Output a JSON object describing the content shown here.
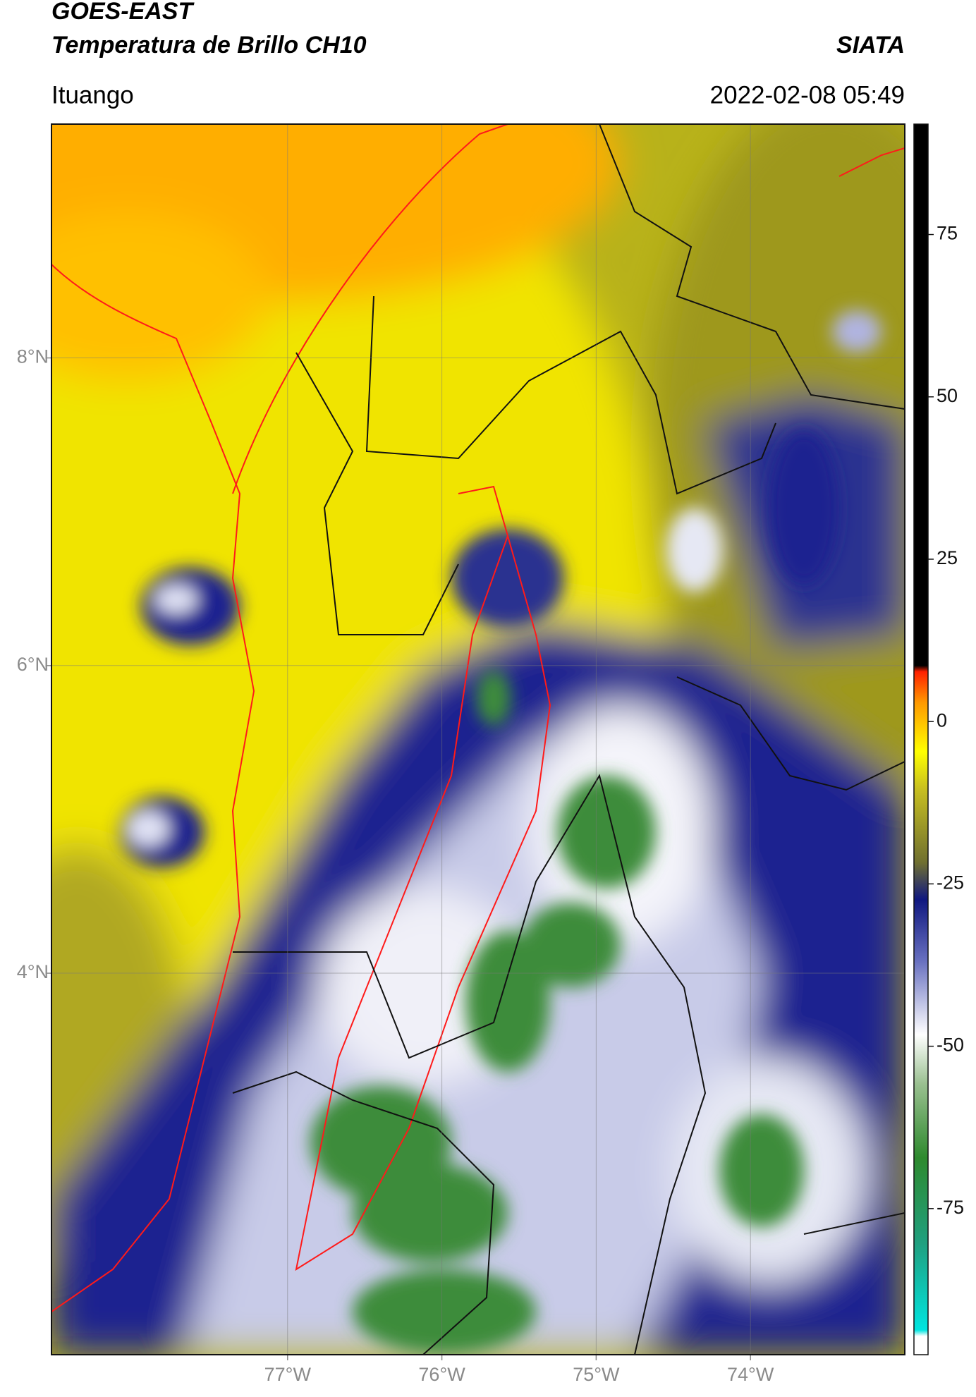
{
  "header": {
    "title": "GOES-EAST",
    "subtitle": "Temperatura de Brillo CH10",
    "brand": "SIATA",
    "location": "Ituango",
    "datetime": "2022-02-08 05:49"
  },
  "map": {
    "lonlim": [
      -78.53,
      -73.0
    ],
    "latlim": [
      1.52,
      9.52
    ],
    "lonticks": [
      {
        "value": -77,
        "label": "77°W"
      },
      {
        "value": -76,
        "label": "76°W"
      },
      {
        "value": -75,
        "label": "75°W"
      },
      {
        "value": -74,
        "label": "74°W"
      }
    ],
    "latticks": [
      {
        "value": 8,
        "label": "8°N"
      },
      {
        "value": 6,
        "label": "6°N"
      },
      {
        "value": 4,
        "label": "4°N"
      }
    ]
  },
  "colorbar": {
    "lim": [
      -97.5,
      92
    ],
    "ticks": [
      75,
      50,
      25,
      0,
      -25,
      -50,
      -75
    ]
  }
}
